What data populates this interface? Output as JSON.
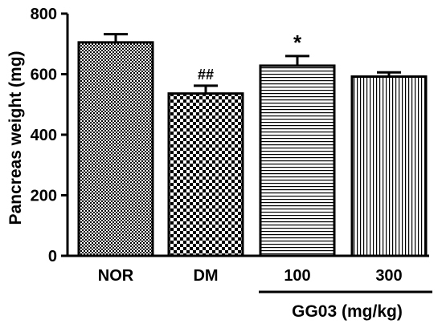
{
  "chart_data": {
    "type": "bar",
    "categories": [
      "NOR",
      "DM",
      "100",
      "300"
    ],
    "values": [
      705,
      536,
      628,
      592
    ],
    "errors": [
      27,
      26,
      32,
      14
    ],
    "annotations": [
      "",
      "##",
      "*",
      ""
    ],
    "ylabel": "Pancreas weight (mg)",
    "xlabel": "",
    "group_label": "GG03 (mg/kg)",
    "group_categories": [
      "100",
      "300"
    ],
    "ylim": [
      0,
      800
    ],
    "yticks": [
      0,
      200,
      400,
      600,
      800
    ],
    "grid": false,
    "patterns": [
      "fine-checker",
      "checker",
      "horizontal-lines",
      "vertical-lines"
    ]
  }
}
